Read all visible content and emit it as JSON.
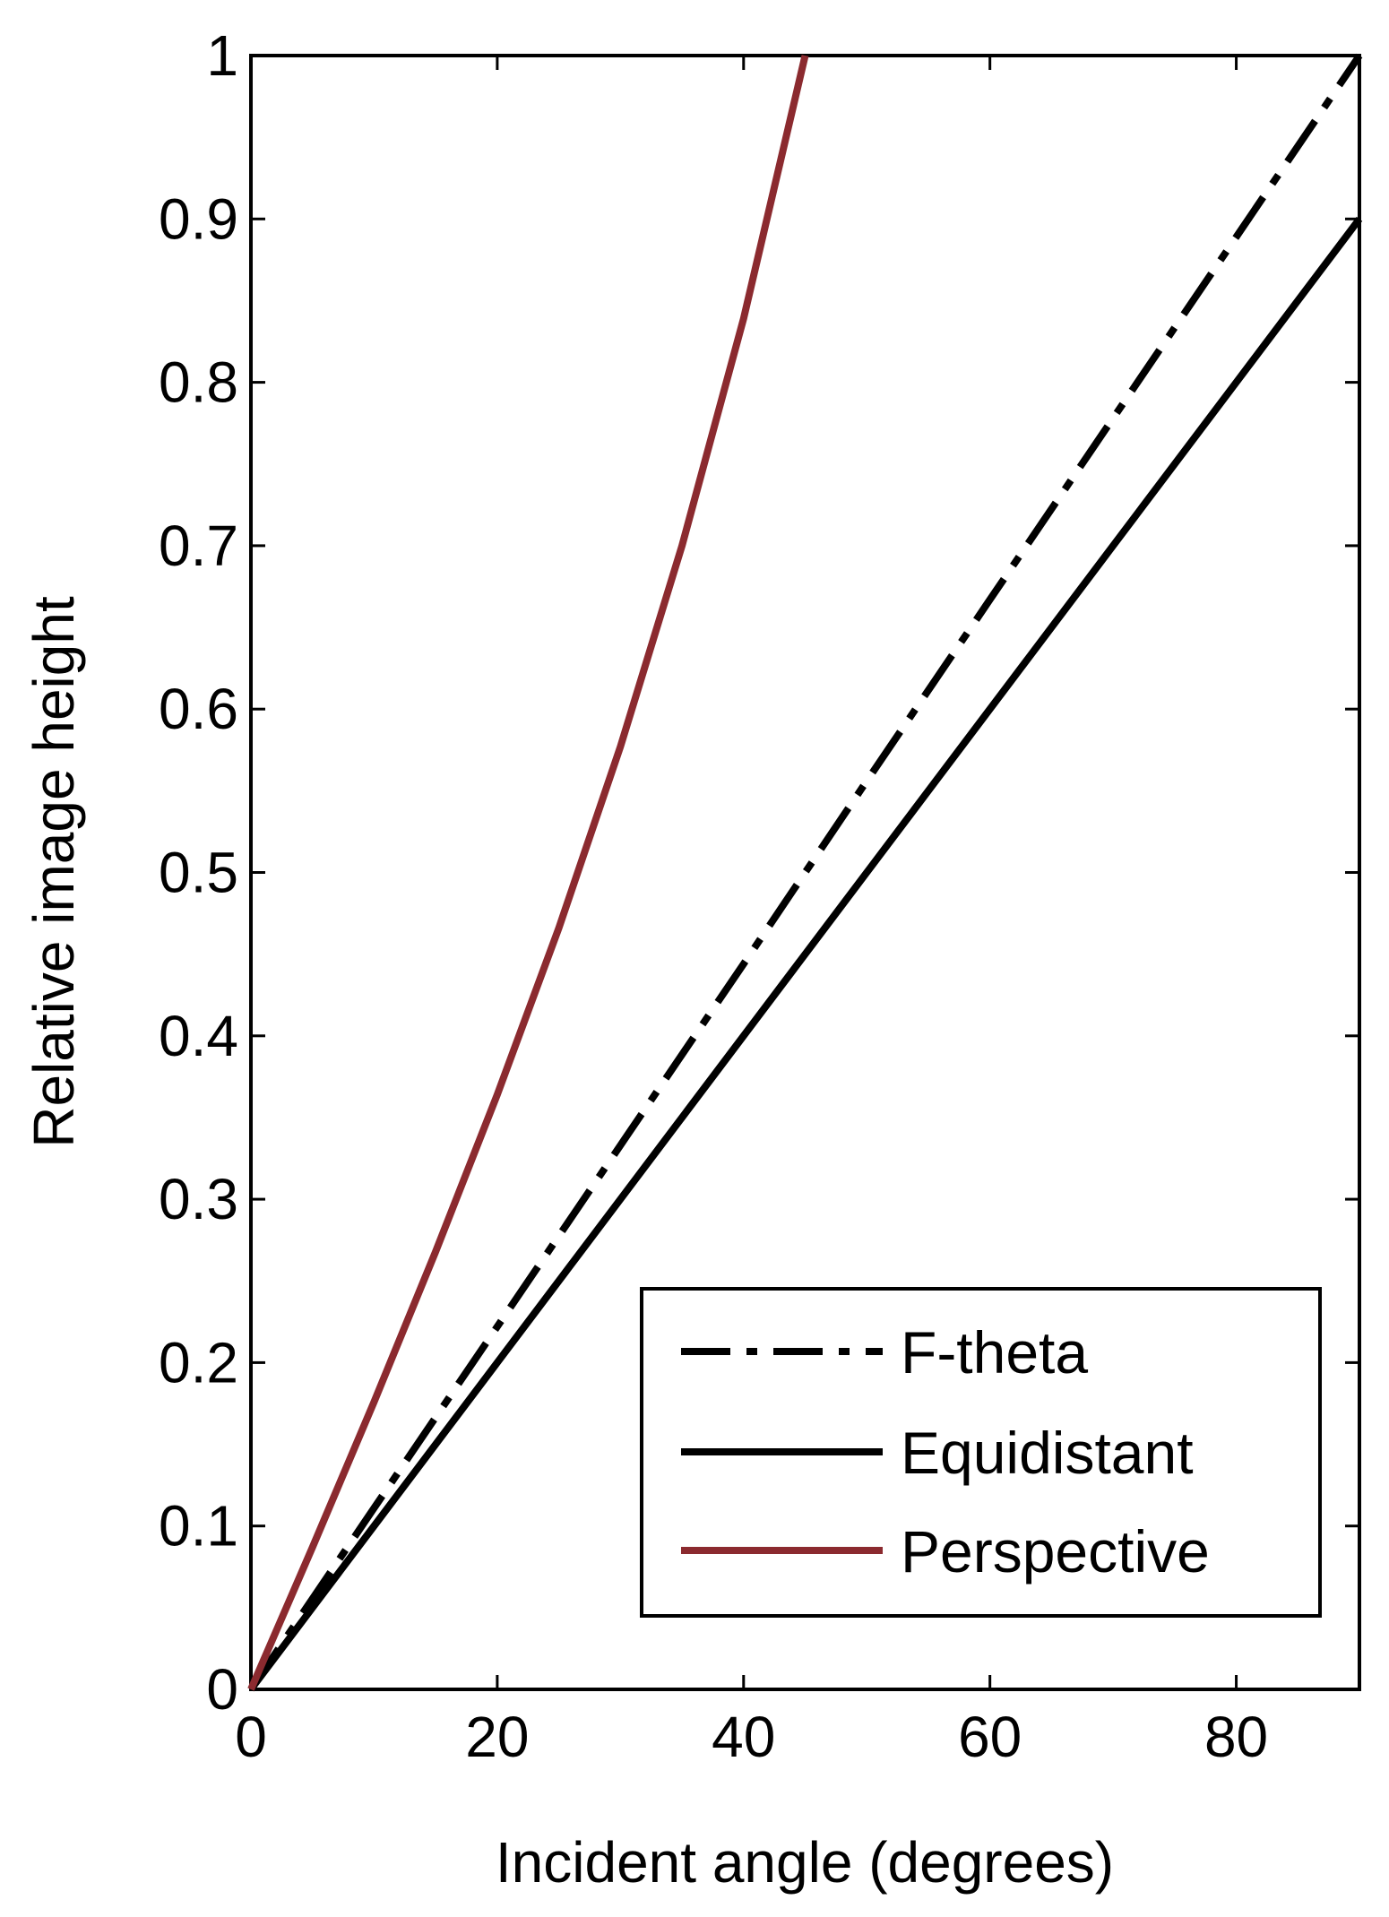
{
  "chart_data": {
    "type": "line",
    "xlabel": "Incident angle (degrees)",
    "ylabel": "Relative image height",
    "xlim": [
      0,
      90
    ],
    "ylim": [
      0,
      1
    ],
    "xticks": [
      0,
      20,
      40,
      60,
      80
    ],
    "xtick_labels": [
      "0",
      "20",
      "40",
      "60",
      "80"
    ],
    "yticks": [
      0,
      0.1,
      0.2,
      0.3,
      0.4,
      0.5,
      0.6,
      0.7,
      0.8,
      0.9,
      1
    ],
    "ytick_labels": [
      "0",
      "0.1",
      "0.2",
      "0.3",
      "0.4",
      "0.5",
      "0.6",
      "0.7",
      "0.8",
      "0.9",
      "1"
    ],
    "grid": false,
    "legend_position": "bottom-right",
    "series": [
      {
        "name": "F-theta",
        "style": "dash-dot",
        "color": "#000000",
        "x": [
          0,
          10,
          20,
          30,
          40,
          50,
          60,
          70,
          80,
          90
        ],
        "y": [
          0,
          0.111,
          0.222,
          0.333,
          0.444,
          0.556,
          0.667,
          0.778,
          0.889,
          1.0
        ]
      },
      {
        "name": "Equidistant",
        "style": "solid",
        "color": "#000000",
        "x": [
          0,
          10,
          20,
          30,
          40,
          50,
          60,
          70,
          80,
          90
        ],
        "y": [
          0,
          0.1,
          0.2,
          0.3,
          0.4,
          0.5,
          0.6,
          0.7,
          0.8,
          0.9
        ]
      },
      {
        "name": "Perspective",
        "style": "solid",
        "color": "#8b2a2f",
        "x": [
          0,
          5,
          10,
          15,
          20,
          25,
          30,
          35,
          40,
          45
        ],
        "y": [
          0,
          0.087,
          0.176,
          0.268,
          0.364,
          0.466,
          0.577,
          0.7,
          0.839,
          1.0
        ]
      }
    ]
  }
}
